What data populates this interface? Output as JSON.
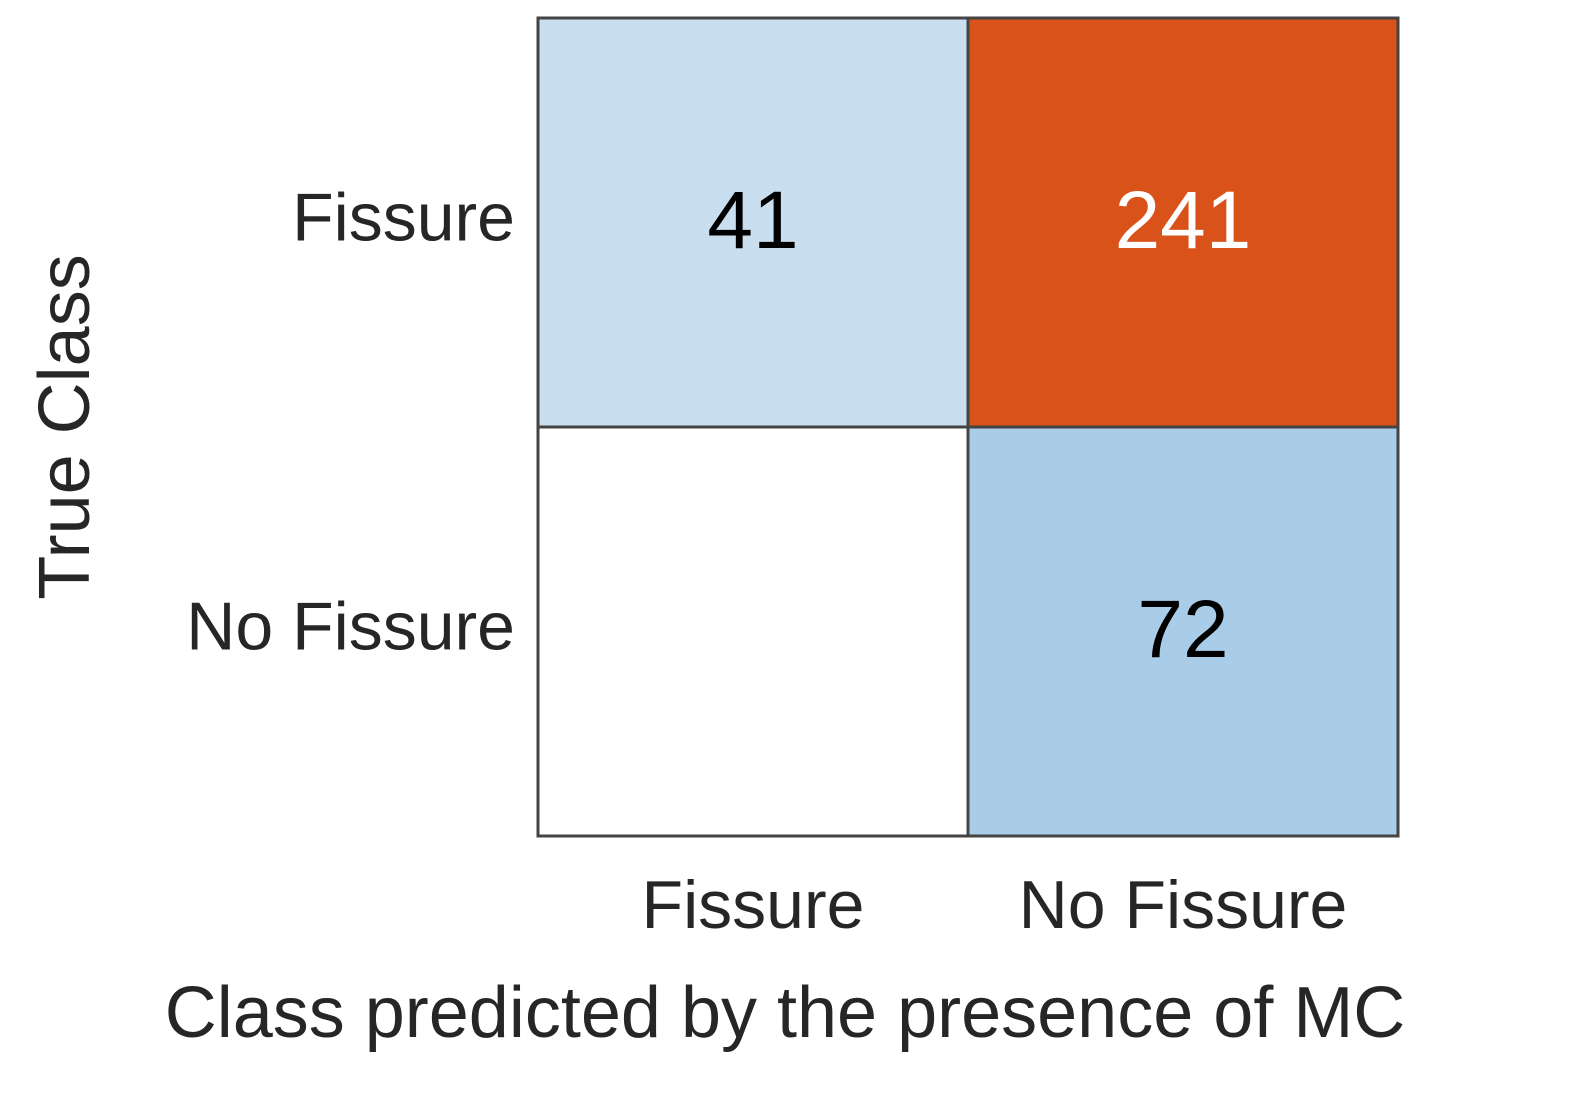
{
  "chart_data": {
    "type": "heatmap",
    "x_label": "Class predicted by the presence of MC",
    "y_label": "True Class",
    "x_categories": [
      "Fissure",
      "No Fissure"
    ],
    "y_categories": [
      "Fissure",
      "No Fissure"
    ],
    "values": [
      [
        41,
        241
      ],
      [
        null,
        72
      ]
    ],
    "cell_colors": [
      [
        "#c9dff0",
        "#d95219"
      ],
      [
        "#ffffff",
        "#a9cce8"
      ]
    ],
    "text_colors": [
      [
        "#000000",
        "#ffffff"
      ],
      [
        "#000000",
        "#000000"
      ]
    ]
  }
}
